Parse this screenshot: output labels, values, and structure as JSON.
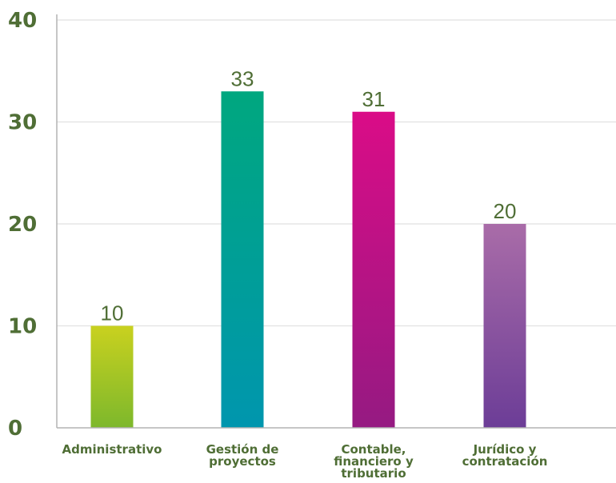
{
  "chart_data": {
    "type": "bar",
    "categories": [
      [
        "Administrativo"
      ],
      [
        "Gestión de",
        "proyectos"
      ],
      [
        "Contable,",
        "financiero y",
        "tributario"
      ],
      [
        "Jurídico y",
        "contratación"
      ]
    ],
    "values": [
      10,
      33,
      31,
      20
    ],
    "data_labels": [
      "10",
      "33",
      "31",
      "20"
    ],
    "ylim": [
      0,
      40
    ],
    "yticks": [
      "0",
      "10",
      "20",
      "30",
      "40"
    ],
    "grid": true,
    "legend": "none",
    "bar_colors": [
      [
        "#c9d11f",
        "#7db82c"
      ],
      [
        "#00a77f",
        "#0096ae"
      ],
      [
        "#da0c87",
        "#951a82"
      ],
      [
        "#a96ca8",
        "#6c3d97"
      ]
    ],
    "axis_color": "#b3b3b3",
    "text_color": "#4f6e35"
  }
}
